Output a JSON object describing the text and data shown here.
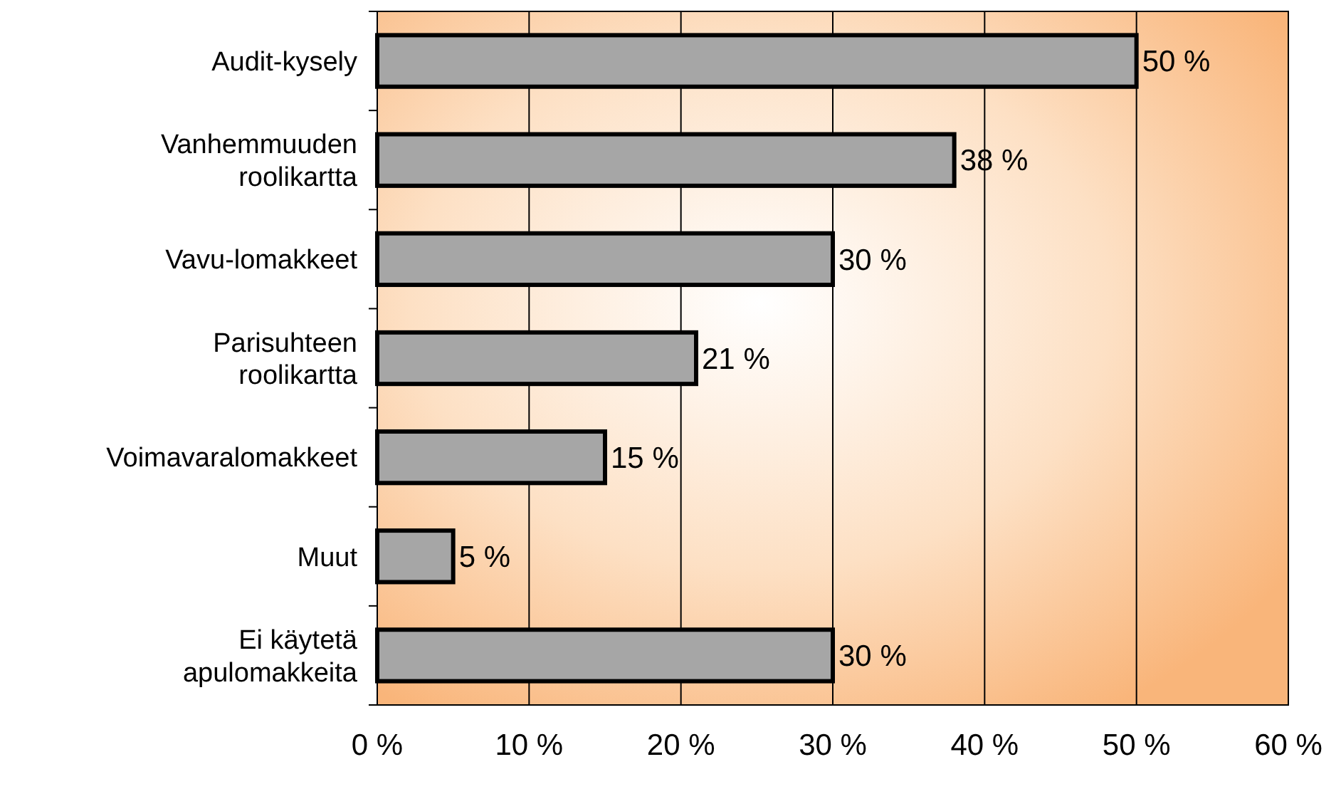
{
  "chart_data": {
    "type": "bar",
    "orientation": "horizontal",
    "categories": [
      "Audit-kysely",
      "Vanhemmuuden roolikartta",
      "Vavu-lomakkeet",
      "Parisuhteen roolikartta",
      "Voimavaralomakkeet",
      "Muut",
      "Ei käytetä apulomakkeita"
    ],
    "values": [
      50,
      38,
      30,
      21,
      15,
      5,
      30
    ],
    "value_labels": [
      "50 %",
      "38 %",
      "30 %",
      "21 %",
      "15 %",
      "5 %",
      "30 %"
    ],
    "color": "#a6a6a6",
    "xlim": [
      0,
      60
    ],
    "xticks": [
      {
        "value": 0,
        "label": "0 %"
      },
      {
        "value": 10,
        "label": "10 %"
      },
      {
        "value": 20,
        "label": "20 %"
      },
      {
        "value": 30,
        "label": "30 %"
      },
      {
        "value": 40,
        "label": "40 %"
      },
      {
        "value": 50,
        "label": "50 %"
      },
      {
        "value": 60,
        "label": "60 %"
      }
    ],
    "grid": "x"
  }
}
